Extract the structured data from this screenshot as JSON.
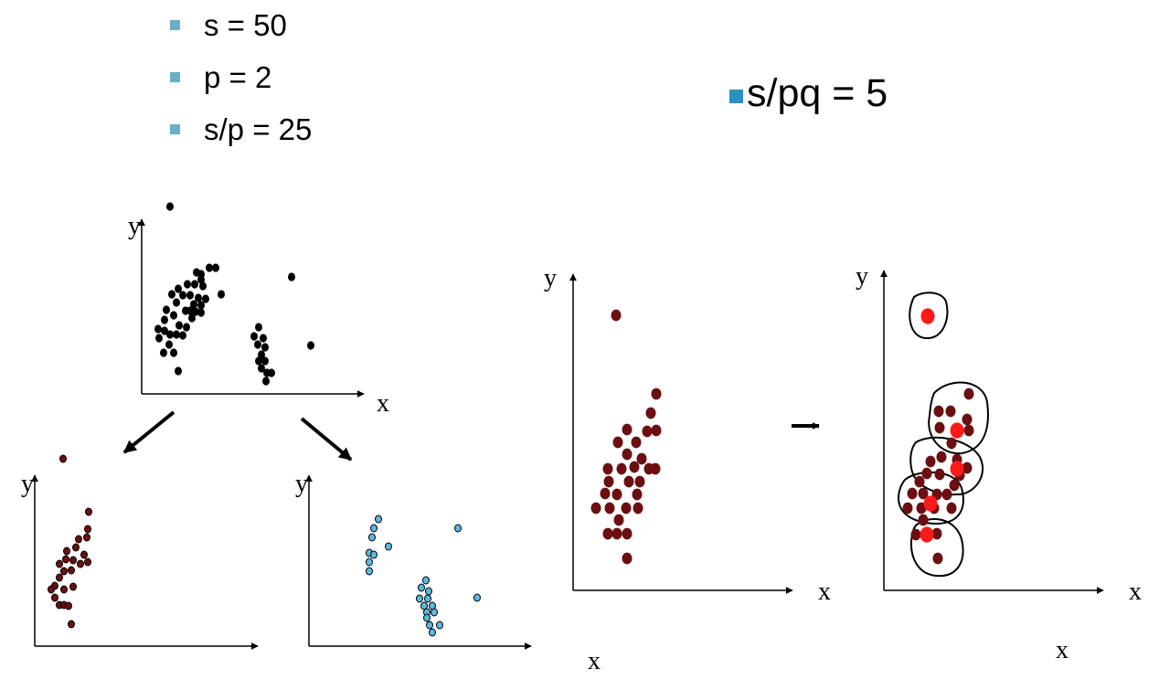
{
  "bullets": [
    {
      "text": "s = 50"
    },
    {
      "text": "p = 2"
    },
    {
      "text": "s/p = 25"
    }
  ],
  "ratio": {
    "text": "s/pq = 5"
  },
  "axis_labels": {
    "x": "x",
    "y": "y"
  },
  "colors": {
    "bullet_square": "#6aafc8",
    "ratio_square": "#2b8fc0",
    "original_points": "#000000",
    "partition_1_points": "#6b0f12",
    "partition_2_points": "#5bb8e0",
    "cluster_centers": "#ff1a1a",
    "arrow": "#000000"
  },
  "icons": {
    "bullet": "square-bullet-icon",
    "flow_arrow": "arrow-right-icon"
  }
}
